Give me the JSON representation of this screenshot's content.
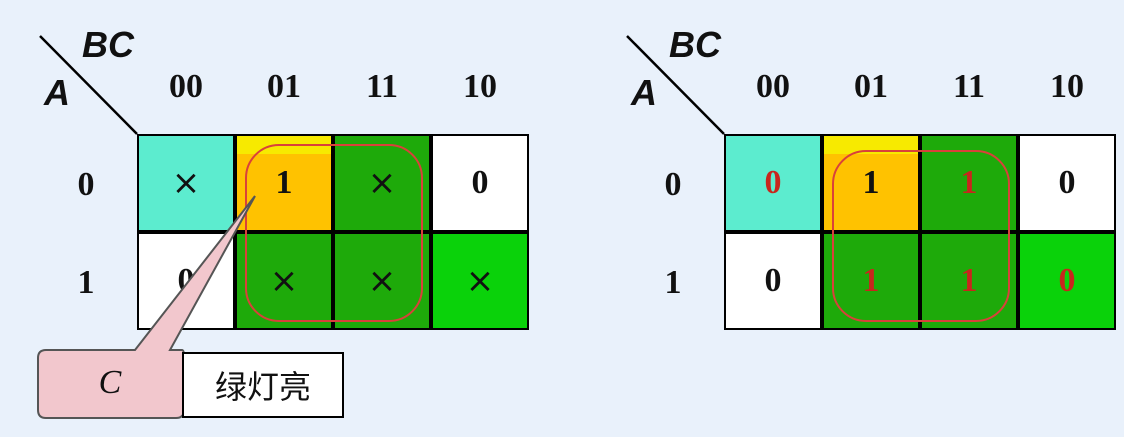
{
  "colors": {
    "background": "#e9f1fb",
    "cyan": "#5ceccf",
    "yellow": "#ffc200",
    "dark_green": "#1eaa0a",
    "bright_green": "#0ad20a",
    "white": "#ffffff",
    "loop_red": "#d9413a",
    "value_red": "#c8261d",
    "callout_pink": "#f2c7cd"
  },
  "left_map": {
    "row_var": "A",
    "col_var": "BC",
    "col_labels": [
      "00",
      "01",
      "11",
      "10"
    ],
    "row_labels": [
      "0",
      "1"
    ],
    "cells": [
      [
        "×",
        "1",
        "×",
        "0"
      ],
      [
        "0",
        "×",
        "×",
        "×"
      ]
    ],
    "callout": {
      "text": "C",
      "label": "绿灯亮"
    }
  },
  "right_map": {
    "row_var": "A",
    "col_var": "BC",
    "col_labels": [
      "00",
      "01",
      "11",
      "10"
    ],
    "row_labels": [
      "0",
      "1"
    ],
    "cells": [
      [
        "0",
        "1",
        "1",
        "0"
      ],
      [
        "0",
        "1",
        "1",
        "0"
      ]
    ]
  }
}
